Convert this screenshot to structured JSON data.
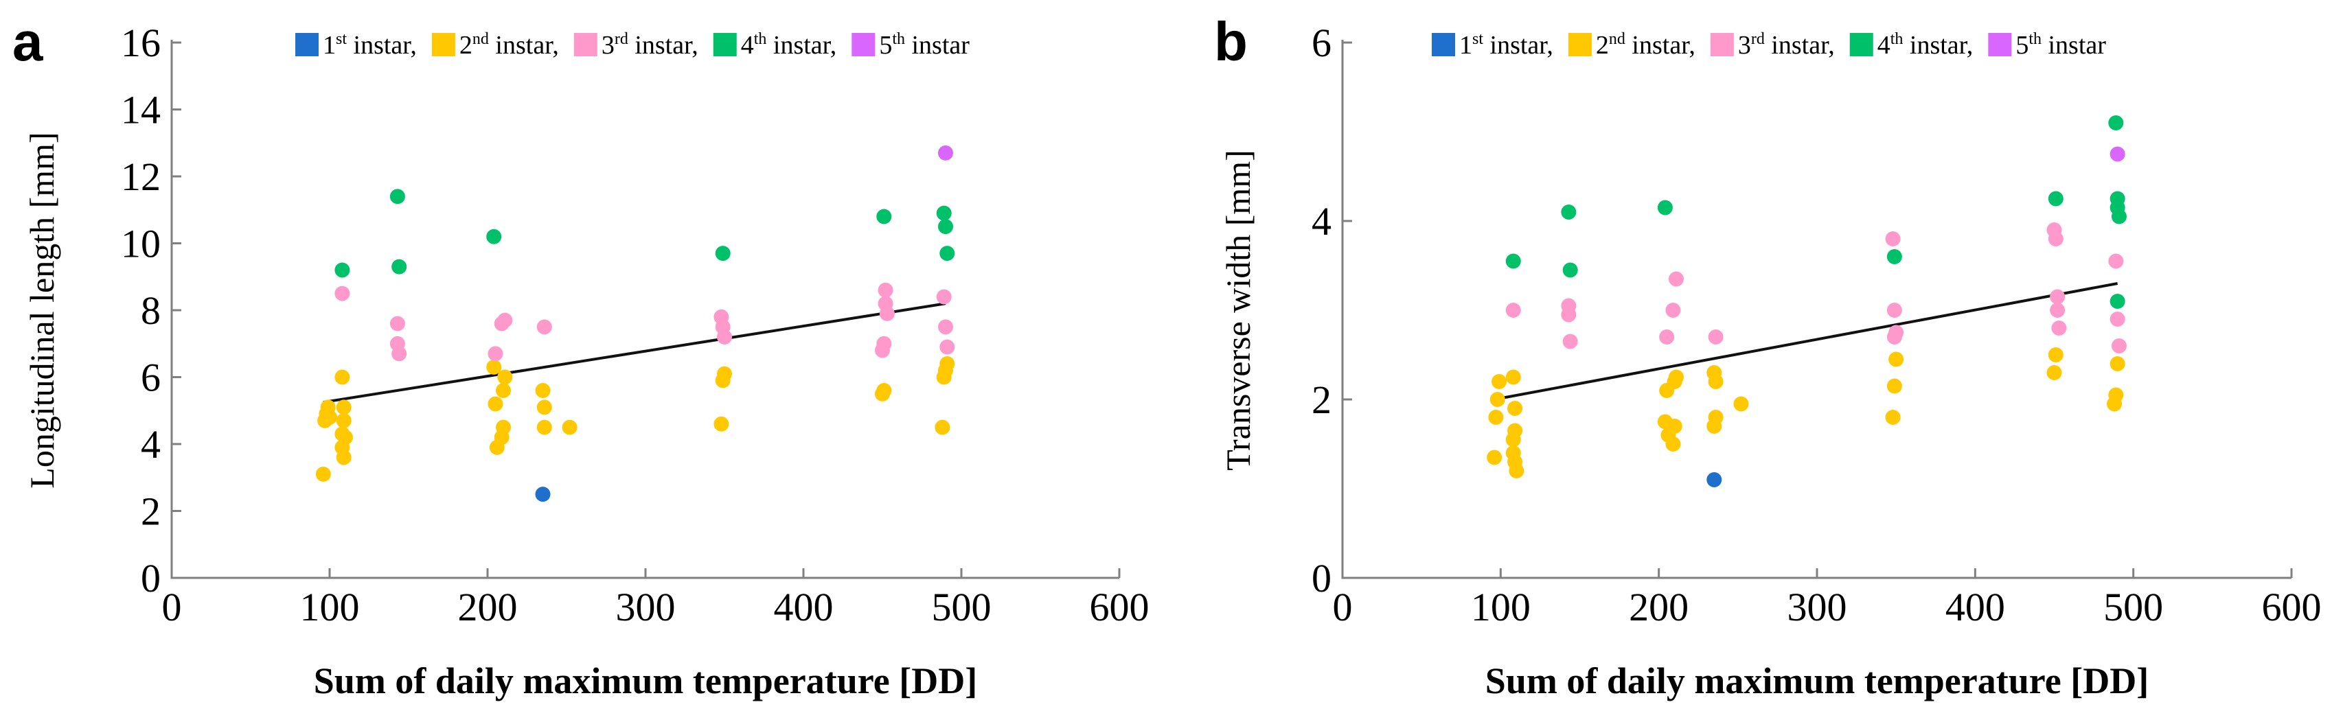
{
  "chart_data": [
    {
      "type": "scatter",
      "panel_label": "a",
      "xlabel": "Sum of daily maximum temperature [DD]",
      "ylabel": "Longitudinal length [mm]",
      "xlim": [
        0,
        600
      ],
      "ylim": [
        0,
        16
      ],
      "xticks": [
        "0",
        "100",
        "200",
        "300",
        "400",
        "500",
        "600"
      ],
      "yticks": [
        "0",
        "2",
        "4",
        "6",
        "8",
        "10",
        "12",
        "14",
        "16"
      ],
      "legend_position": "top",
      "legend": [
        {
          "ordinal": "1",
          "suffix": "st",
          "label": " instar,",
          "color": "#1f6fcc"
        },
        {
          "ordinal": "2",
          "suffix": "nd",
          "label": " instar,",
          "color": "#ffc800"
        },
        {
          "ordinal": "3",
          "suffix": "rd",
          "label": " instar,",
          "color": "#ff99cc"
        },
        {
          "ordinal": "4",
          "suffix": "th",
          "label": " instar,",
          "color": "#00c06a"
        },
        {
          "ordinal": "5",
          "suffix": "th",
          "label": " instar",
          "color": "#d966ff"
        }
      ],
      "trendline": {
        "x": [
          96,
          490
        ],
        "y": [
          5.25,
          8.2
        ]
      },
      "series": [
        {
          "name": "1st instar",
          "color": "#1f6fcc",
          "points": [
            [
              235,
              2.5
            ]
          ]
        },
        {
          "name": "2nd instar",
          "color": "#ffc800",
          "points": [
            [
              96,
              3.1
            ],
            [
              97,
              4.7
            ],
            [
              98,
              4.9
            ],
            [
              99,
              5.1
            ],
            [
              100,
              4.8
            ],
            [
              108,
              6.0
            ],
            [
              109,
              5.1
            ],
            [
              109,
              4.7
            ],
            [
              108,
              4.3
            ],
            [
              108,
              3.9
            ],
            [
              109,
              3.6
            ],
            [
              110,
              4.2
            ],
            [
              204,
              6.3
            ],
            [
              205,
              5.2
            ],
            [
              206,
              3.9
            ],
            [
              209,
              4.2
            ],
            [
              210,
              4.5
            ],
            [
              210,
              5.6
            ],
            [
              211,
              6.0
            ],
            [
              235,
              5.6
            ],
            [
              236,
              5.1
            ],
            [
              236,
              4.5
            ],
            [
              252,
              4.5
            ],
            [
              348,
              4.6
            ],
            [
              349,
              5.9
            ],
            [
              350,
              6.1
            ],
            [
              450,
              5.5
            ],
            [
              451,
              5.6
            ],
            [
              488,
              4.5
            ],
            [
              489,
              6.0
            ],
            [
              490,
              6.2
            ],
            [
              491,
              6.4
            ]
          ]
        },
        {
          "name": "3rd instar",
          "color": "#ff99cc",
          "points": [
            [
              108,
              8.5
            ],
            [
              143,
              7.6
            ],
            [
              143,
              7.0
            ],
            [
              144,
              6.7
            ],
            [
              205,
              6.7
            ],
            [
              209,
              7.6
            ],
            [
              211,
              7.7
            ],
            [
              236,
              7.5
            ],
            [
              348,
              7.8
            ],
            [
              349,
              7.5
            ],
            [
              350,
              7.2
            ],
            [
              450,
              6.8
            ],
            [
              451,
              7.0
            ],
            [
              452,
              8.2
            ],
            [
              452,
              8.6
            ],
            [
              453,
              7.9
            ],
            [
              489,
              8.4
            ],
            [
              490,
              7.5
            ],
            [
              491,
              6.9
            ]
          ]
        },
        {
          "name": "4th instar",
          "color": "#00c06a",
          "points": [
            [
              108,
              9.2
            ],
            [
              143,
              11.4
            ],
            [
              144,
              9.3
            ],
            [
              204,
              10.2
            ],
            [
              349,
              9.7
            ],
            [
              451,
              10.8
            ],
            [
              489,
              10.9
            ],
            [
              490,
              10.5
            ],
            [
              491,
              9.7
            ]
          ]
        },
        {
          "name": "5th instar",
          "color": "#d966ff",
          "points": [
            [
              490,
              12.7
            ]
          ]
        }
      ]
    },
    {
      "type": "scatter",
      "panel_label": "b",
      "xlabel": "Sum of daily maximum temperature [DD]",
      "ylabel": "Transverse width [mm]",
      "xlim": [
        0,
        600
      ],
      "ylim": [
        0,
        6
      ],
      "xticks": [
        "0",
        "100",
        "200",
        "300",
        "400",
        "500",
        "600"
      ],
      "yticks": [
        "0",
        "2",
        "4",
        "6"
      ],
      "legend_position": "top",
      "legend": [
        {
          "ordinal": "1",
          "suffix": "st",
          "label": " instar,",
          "color": "#1f6fcc"
        },
        {
          "ordinal": "2",
          "suffix": "nd",
          "label": " instar,",
          "color": "#ffc800"
        },
        {
          "ordinal": "3",
          "suffix": "rd",
          "label": " instar,",
          "color": "#ff99cc"
        },
        {
          "ordinal": "4",
          "suffix": "th",
          "label": " instar,",
          "color": "#00c06a"
        },
        {
          "ordinal": "5",
          "suffix": "th",
          "label": " instar",
          "color": "#d966ff"
        }
      ],
      "trendline": {
        "x": [
          96,
          490
        ],
        "y": [
          2.0,
          3.3
        ]
      },
      "series": [
        {
          "name": "1st instar",
          "color": "#1f6fcc",
          "points": [
            [
              235,
              1.1
            ]
          ]
        },
        {
          "name": "2nd instar",
          "color": "#ffc800",
          "points": [
            [
              96,
              1.35
            ],
            [
              97,
              1.8
            ],
            [
              98,
              2.0
            ],
            [
              99,
              2.2
            ],
            [
              108,
              2.25
            ],
            [
              109,
              1.9
            ],
            [
              109,
              1.65
            ],
            [
              108,
              1.55
            ],
            [
              108,
              1.4
            ],
            [
              109,
              1.3
            ],
            [
              110,
              1.2
            ],
            [
              204,
              1.75
            ],
            [
              205,
              2.1
            ],
            [
              206,
              1.6
            ],
            [
              209,
              1.5
            ],
            [
              210,
              2.2
            ],
            [
              211,
              2.25
            ],
            [
              210,
              1.7
            ],
            [
              235,
              2.3
            ],
            [
              236,
              2.2
            ],
            [
              236,
              1.8
            ],
            [
              235,
              1.7
            ],
            [
              252,
              1.95
            ],
            [
              348,
              1.8
            ],
            [
              349,
              2.15
            ],
            [
              350,
              2.45
            ],
            [
              450,
              2.3
            ],
            [
              451,
              2.5
            ],
            [
              488,
              1.95
            ],
            [
              489,
              2.05
            ],
            [
              490,
              2.4
            ]
          ]
        },
        {
          "name": "3rd instar",
          "color": "#ff99cc",
          "points": [
            [
              108,
              3.0
            ],
            [
              143,
              3.05
            ],
            [
              143,
              2.95
            ],
            [
              144,
              2.65
            ],
            [
              205,
              2.7
            ],
            [
              209,
              3.0
            ],
            [
              211,
              3.35
            ],
            [
              236,
              2.7
            ],
            [
              348,
              3.8
            ],
            [
              349,
              3.0
            ],
            [
              350,
              2.75
            ],
            [
              349,
              2.7
            ],
            [
              450,
              3.9
            ],
            [
              451,
              3.8
            ],
            [
              452,
              3.15
            ],
            [
              452,
              3.0
            ],
            [
              453,
              2.8
            ],
            [
              489,
              3.55
            ],
            [
              490,
              2.9
            ],
            [
              491,
              2.6
            ]
          ]
        },
        {
          "name": "4th instar",
          "color": "#00c06a",
          "points": [
            [
              108,
              3.55
            ],
            [
              143,
              4.1
            ],
            [
              144,
              3.45
            ],
            [
              204,
              4.15
            ],
            [
              349,
              3.6
            ],
            [
              451,
              4.25
            ],
            [
              489,
              5.1
            ],
            [
              490,
              4.25
            ],
            [
              490,
              4.15
            ],
            [
              491,
              4.05
            ],
            [
              490,
              3.1
            ]
          ]
        },
        {
          "name": "5th instar",
          "color": "#d966ff",
          "points": [
            [
              490,
              4.75
            ]
          ]
        }
      ]
    }
  ]
}
